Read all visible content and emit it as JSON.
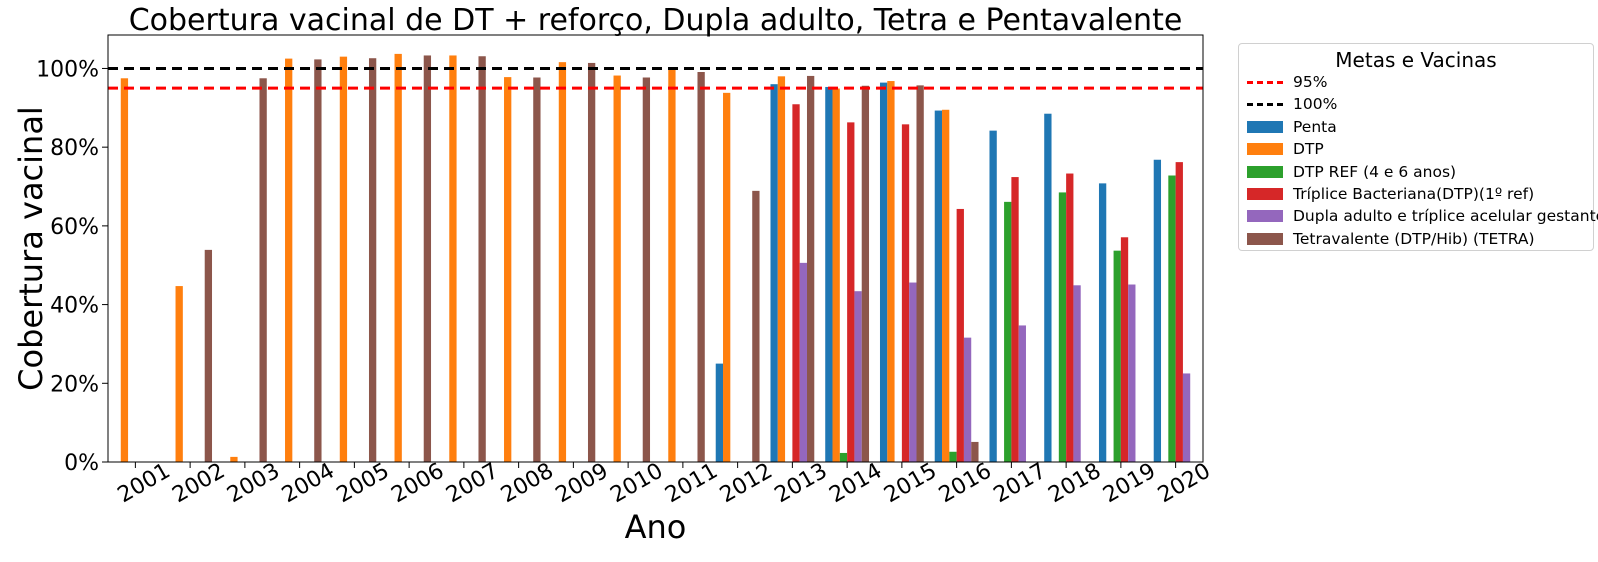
{
  "chart_data": {
    "type": "bar",
    "title": "Cobertura vacinal de DT + reforço, Dupla adulto, Tetra e Pentavalente",
    "xlabel": "Ano",
    "ylabel": "Cobertura vacinal",
    "ylim": [
      0,
      108.5
    ],
    "yticks": [
      0,
      20,
      40,
      60,
      80,
      100
    ],
    "ytick_labels": [
      "0%",
      "20%",
      "40%",
      "60%",
      "80%",
      "100%"
    ],
    "categories": [
      "2001",
      "2002",
      "2003",
      "2004",
      "2005",
      "2006",
      "2007",
      "2008",
      "2009",
      "2010",
      "2011",
      "2012",
      "2013",
      "2014",
      "2015",
      "2016",
      "2017",
      "2018",
      "2019",
      "2020"
    ],
    "series": [
      {
        "name": "Penta",
        "color": "#1f77b4",
        "values": [
          null,
          null,
          null,
          null,
          null,
          null,
          null,
          null,
          null,
          null,
          null,
          25,
          96,
          95.3,
          96.4,
          89.3,
          84.2,
          88.5,
          70.8,
          76.8
        ]
      },
      {
        "name": "DTP",
        "color": "#ff7f0e",
        "values": [
          97.5,
          44.7,
          1.3,
          102.5,
          103,
          103.7,
          103.3,
          97.8,
          101.6,
          98.2,
          99.7,
          93.8,
          98,
          94.9,
          96.8,
          89.5,
          null,
          null,
          null,
          null
        ]
      },
      {
        "name": "DTP REF (4 e 6 anos)",
        "color": "#2ca02c",
        "values": [
          null,
          null,
          null,
          null,
          null,
          null,
          null,
          null,
          null,
          null,
          null,
          null,
          null,
          2.3,
          null,
          2.6,
          66.1,
          68.5,
          53.7,
          72.8
        ]
      },
      {
        "name": "Tríplice Bacteriana(DTP)(1º ref)",
        "color": "#d62728",
        "values": [
          null,
          null,
          null,
          null,
          null,
          null,
          null,
          null,
          null,
          null,
          null,
          null,
          90.9,
          86.3,
          85.8,
          64.3,
          72.4,
          73.3,
          57.1,
          76.2
        ]
      },
      {
        "name": "Dupla adulto e tríplice acelular gestante",
        "color": "#9467bd",
        "values": [
          null,
          null,
          null,
          null,
          null,
          null,
          null,
          null,
          null,
          null,
          null,
          null,
          50.6,
          43.4,
          45.6,
          31.6,
          34.7,
          44.9,
          45.1,
          22.5
        ]
      },
      {
        "name": "Tetravalente (DTP/Hib) (TETRA)",
        "color": "#8c564b",
        "values": [
          null,
          53.9,
          97.5,
          102.3,
          102.6,
          103.3,
          103.1,
          97.7,
          101.4,
          97.7,
          99.1,
          68.9,
          98.1,
          95.6,
          95.7,
          5.1,
          null,
          null,
          null,
          null
        ]
      }
    ],
    "reference_lines": [
      {
        "name": "95%",
        "value": 95,
        "color": "#ff0000",
        "style": "dashed"
      },
      {
        "name": "100%",
        "value": 100,
        "color": "#000000",
        "style": "dashed"
      }
    ],
    "legend": {
      "title": "Metas e Vacinas",
      "placement": "outside-right"
    },
    "grid": false
  }
}
